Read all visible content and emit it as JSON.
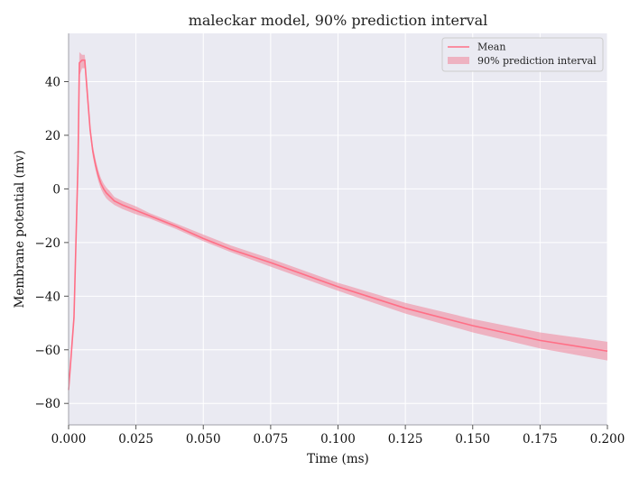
{
  "chart_data": {
    "type": "line",
    "title": "maleckar model, 90% prediction interval",
    "xlabel": "Time (ms)",
    "ylabel": "Membrane potential (mv)",
    "xlim": [
      0.0,
      0.2
    ],
    "ylim": [
      -88,
      58
    ],
    "grid": true,
    "legend_placement": "top-right",
    "x_ticks": [
      0.0,
      0.025,
      0.05,
      0.075,
      0.1,
      0.125,
      0.15,
      0.175,
      0.2
    ],
    "x_tick_labels": [
      "0.000",
      "0.025",
      "0.050",
      "0.075",
      "0.100",
      "0.125",
      "0.150",
      "0.175",
      "0.200"
    ],
    "y_ticks": [
      -80,
      -60,
      -40,
      -20,
      0,
      20,
      40
    ],
    "y_tick_labels": [
      "−80",
      "−60",
      "−40",
      "−20",
      "0",
      "20",
      "40"
    ],
    "colors": {
      "mean_line": "#ff6f86",
      "interval_fill": "#f08ca0",
      "plot_background": "#eaeaf2",
      "grid": "#ffffff",
      "spine": "#a0a0a8"
    },
    "series": [
      {
        "name": "Mean",
        "x": [
          0.0,
          0.002,
          0.0035,
          0.004,
          0.005,
          0.006,
          0.007,
          0.008,
          0.009,
          0.01,
          0.011,
          0.012,
          0.013,
          0.014,
          0.015,
          0.017,
          0.02,
          0.025,
          0.03,
          0.04,
          0.05,
          0.06,
          0.075,
          0.1,
          0.125,
          0.15,
          0.175,
          0.2
        ],
        "y": [
          -75,
          -48,
          10,
          47,
          48,
          48,
          35,
          22,
          14,
          9,
          5,
          2,
          0,
          -1.5,
          -2.5,
          -4.5,
          -6,
          -8,
          -10,
          -14,
          -18.5,
          -22.5,
          -27.5,
          -36.5,
          -44.5,
          -51,
          -56.5,
          -60.5
        ]
      },
      {
        "name": "90% prediction interval",
        "x": [
          0.0,
          0.002,
          0.0035,
          0.004,
          0.005,
          0.006,
          0.007,
          0.008,
          0.009,
          0.01,
          0.011,
          0.012,
          0.013,
          0.014,
          0.015,
          0.017,
          0.02,
          0.025,
          0.03,
          0.04,
          0.05,
          0.06,
          0.075,
          0.1,
          0.125,
          0.15,
          0.175,
          0.2
        ],
        "lower": [
          -77,
          -50,
          5,
          42,
          45,
          45,
          32,
          20,
          12,
          7,
          3,
          0,
          -2,
          -3.5,
          -4.5,
          -6,
          -7.5,
          -9.5,
          -11,
          -15,
          -19.5,
          -23.5,
          -29,
          -38,
          -46.5,
          -53.5,
          -59.5,
          -64
        ],
        "upper": [
          -73,
          -45,
          15,
          51,
          50,
          50,
          38,
          24,
          16,
          11,
          7,
          4,
          2,
          0.5,
          -0.5,
          -3,
          -4.5,
          -6.5,
          -9,
          -13,
          -17,
          -21,
          -26,
          -35,
          -42.5,
          -48.5,
          -53.5,
          -57
        ]
      }
    ]
  }
}
